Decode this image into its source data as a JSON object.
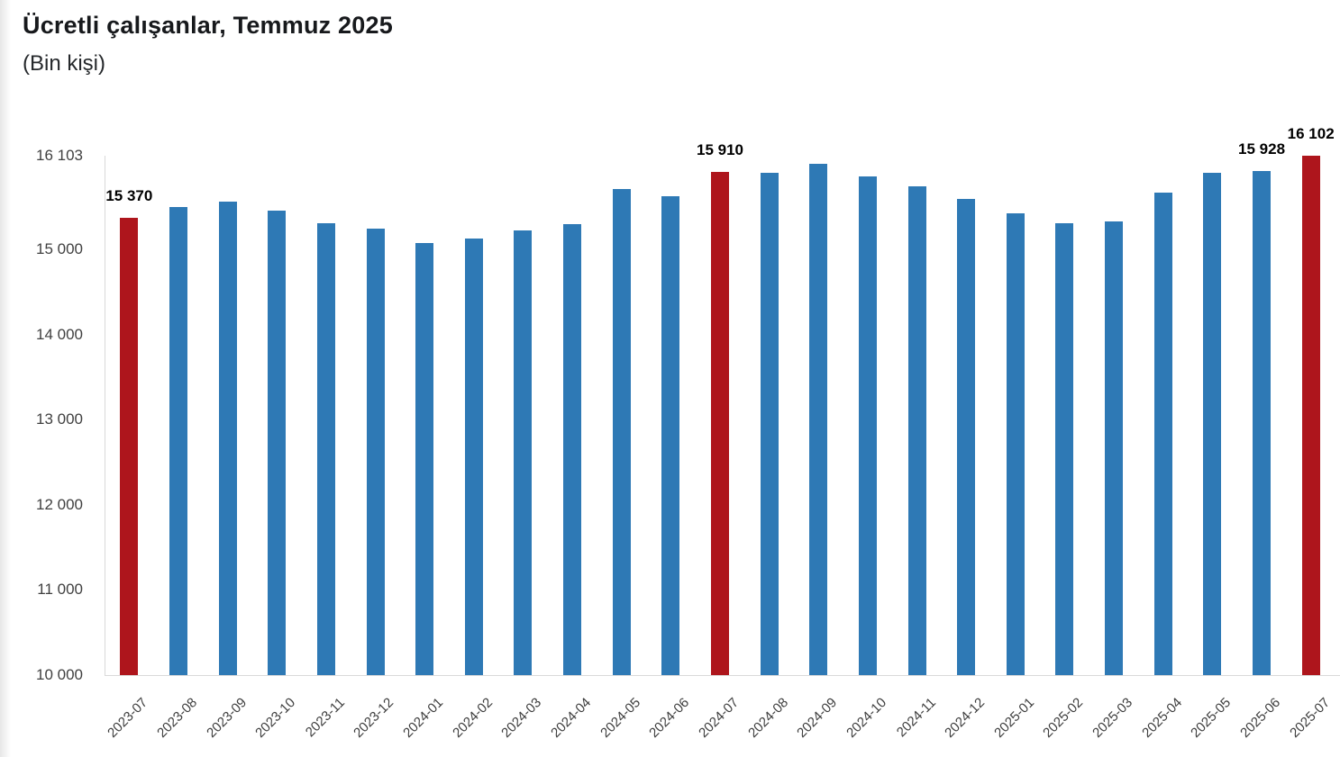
{
  "header": {
    "title": "Ücretli çalışanlar, Temmuz 2025",
    "subtitle": "(Bin kişi)"
  },
  "chart_data": {
    "type": "bar",
    "title": "Ücretli çalışanlar, Temmuz 2025",
    "subtitle": "(Bin kişi)",
    "unit": "Bin kişi",
    "grid": false,
    "legend": false,
    "ylim": [
      10000,
      16103
    ],
    "yticks": [
      {
        "value": 16103,
        "label": "16 103"
      },
      {
        "value": 15000,
        "label": "15 000"
      },
      {
        "value": 14000,
        "label": "14 000"
      },
      {
        "value": 13000,
        "label": "13 000"
      },
      {
        "value": 12000,
        "label": "12 000"
      },
      {
        "value": 11000,
        "label": "11 000"
      },
      {
        "value": 10000,
        "label": "10 000"
      }
    ],
    "categories": [
      "2023-07",
      "2023-08",
      "2023-09",
      "2023-10",
      "2023-11",
      "2023-12",
      "2024-01",
      "2024-02",
      "2024-03",
      "2024-04",
      "2024-05",
      "2024-06",
      "2024-07",
      "2024-08",
      "2024-09",
      "2024-10",
      "2024-11",
      "2024-12",
      "2025-01",
      "2025-02",
      "2025-03",
      "2025-04",
      "2025-05",
      "2025-06",
      "2025-07"
    ],
    "values": [
      15370,
      15500,
      15560,
      15455,
      15310,
      15245,
      15080,
      15125,
      15225,
      15295,
      15710,
      15625,
      15910,
      15900,
      16005,
      15860,
      15740,
      15595,
      15425,
      15305,
      15330,
      15670,
      15905,
      15928,
      16102
    ],
    "bar_labels": {
      "0": "15 370",
      "12": "15 910",
      "23": "15 928",
      "24": "16 102"
    },
    "highlight_indices": [
      0,
      12,
      24
    ],
    "colors": {
      "bar": "#2e79b5",
      "highlight": "#ae151c",
      "axis_line": "#d9d9d9",
      "tick_text": "#404040",
      "bar_label_text": "#000000"
    }
  }
}
